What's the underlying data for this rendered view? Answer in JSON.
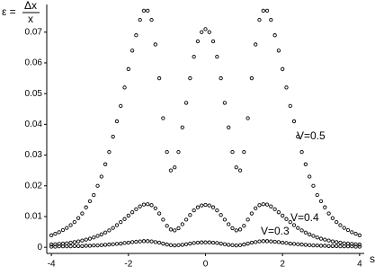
{
  "chart_data": {
    "type": "scatter",
    "y_label": {
      "lhs": "ε =",
      "numerator": "Δx",
      "denominator": "x"
    },
    "x_label": "s",
    "x": [
      -4,
      -3.9,
      -3.8,
      -3.7,
      -3.6,
      -3.5,
      -3.4,
      -3.3,
      -3.2,
      -3.1,
      -3,
      -2.9,
      -2.8,
      -2.7,
      -2.6,
      -2.5,
      -2.4,
      -2.3,
      -2.2,
      -2.1,
      -2,
      -1.9,
      -1.8,
      -1.7,
      -1.6,
      -1.5,
      -1.4,
      -1.3,
      -1.2,
      -1.1,
      -1,
      -0.9,
      -0.8,
      -0.7,
      -0.6,
      -0.5,
      -0.4,
      -0.3,
      -0.2,
      -0.1,
      0,
      0.1,
      0.2,
      0.3,
      0.4,
      0.5,
      0.6,
      0.7,
      0.8,
      0.9,
      1,
      1.1,
      1.2,
      1.3,
      1.4,
      1.5,
      1.6,
      1.7,
      1.8,
      1.9,
      2,
      2.1,
      2.2,
      2.3,
      2.4,
      2.5,
      2.6,
      2.7,
      2.8,
      2.9,
      3,
      3.1,
      3.2,
      3.3,
      3.4,
      3.5,
      3.6,
      3.7,
      3.8,
      3.9,
      4
    ],
    "series": [
      {
        "name": "V=0.5",
        "color": "#000000",
        "values": [
          0.0039,
          0.0044,
          0.0049,
          0.0056,
          0.0063,
          0.0072,
          0.0082,
          0.0095,
          0.011,
          0.013,
          0.015,
          0.017,
          0.02,
          0.023,
          0.027,
          0.031,
          0.036,
          0.041,
          0.046,
          0.052,
          0.058,
          0.064,
          0.069,
          0.074,
          0.077,
          0.077,
          0.074,
          0.066,
          0.055,
          0.042,
          0.031,
          0.025,
          0.026,
          0.031,
          0.039,
          0.047,
          0.055,
          0.062,
          0.067,
          0.07,
          0.071,
          0.07,
          0.067,
          0.062,
          0.055,
          0.047,
          0.039,
          0.031,
          0.026,
          0.025,
          0.031,
          0.042,
          0.055,
          0.066,
          0.074,
          0.077,
          0.077,
          0.074,
          0.069,
          0.064,
          0.058,
          0.052,
          0.046,
          0.041,
          0.036,
          0.031,
          0.027,
          0.023,
          0.02,
          0.017,
          0.015,
          0.013,
          0.011,
          0.0095,
          0.0082,
          0.0072,
          0.0063,
          0.0056,
          0.0049,
          0.0044,
          0.0039
        ]
      },
      {
        "name": "V=0.4",
        "color": "#000000",
        "values": [
          0.0009,
          0.001,
          0.0011,
          0.0012,
          0.0013,
          0.0015,
          0.0017,
          0.0019,
          0.0022,
          0.0025,
          0.0028,
          0.0032,
          0.0037,
          0.0042,
          0.0048,
          0.0055,
          0.0063,
          0.0072,
          0.0082,
          0.0092,
          0.0103,
          0.0114,
          0.0124,
          0.0133,
          0.0139,
          0.014,
          0.0137,
          0.0127,
          0.011,
          0.009,
          0.007,
          0.0058,
          0.0055,
          0.0062,
          0.0075,
          0.009,
          0.0105,
          0.012,
          0.013,
          0.0136,
          0.0138,
          0.0136,
          0.013,
          0.012,
          0.0105,
          0.009,
          0.0075,
          0.0062,
          0.0055,
          0.0058,
          0.007,
          0.009,
          0.011,
          0.0127,
          0.0137,
          0.014,
          0.0139,
          0.0133,
          0.0124,
          0.0114,
          0.0103,
          0.0092,
          0.0082,
          0.0072,
          0.0063,
          0.0055,
          0.0048,
          0.0042,
          0.0037,
          0.0032,
          0.0028,
          0.0025,
          0.0022,
          0.0019,
          0.0017,
          0.0015,
          0.0013,
          0.0012,
          0.0011,
          0.001,
          0.0009
        ]
      },
      {
        "name": "V=0.3",
        "color": "#000000",
        "values": [
          0.0002,
          0.0002,
          0.0003,
          0.0003,
          0.0003,
          0.0003,
          0.0004,
          0.0004,
          0.0004,
          0.0005,
          0.0005,
          0.0006,
          0.0006,
          0.0007,
          0.0008,
          0.0009,
          0.001,
          0.0011,
          0.0012,
          0.0014,
          0.0015,
          0.0017,
          0.0018,
          0.0019,
          0.002,
          0.002,
          0.0019,
          0.0017,
          0.0015,
          0.0012,
          0.0009,
          0.0007,
          0.0006,
          0.0007,
          0.0008,
          0.001,
          0.0012,
          0.0014,
          0.0015,
          0.0016,
          0.0016,
          0.0016,
          0.0015,
          0.0014,
          0.0012,
          0.001,
          0.0008,
          0.0007,
          0.0006,
          0.0007,
          0.0009,
          0.0012,
          0.0015,
          0.0017,
          0.0019,
          0.002,
          0.002,
          0.0019,
          0.0018,
          0.0017,
          0.0015,
          0.0014,
          0.0012,
          0.0011,
          0.001,
          0.0009,
          0.0008,
          0.0007,
          0.0006,
          0.0006,
          0.0005,
          0.0005,
          0.0004,
          0.0004,
          0.0004,
          0.0003,
          0.0003,
          0.0003,
          0.0003,
          0.0002,
          0.0002
        ]
      }
    ],
    "xlim": [
      -4.12,
      4.12
    ],
    "ylim": [
      -0.002,
      0.079
    ],
    "xticks": [
      -4,
      -2,
      0,
      2,
      4
    ],
    "yticks": [
      0,
      0.01,
      0.02,
      0.03,
      0.04,
      0.05,
      0.06,
      0.07
    ],
    "grid": false
  }
}
